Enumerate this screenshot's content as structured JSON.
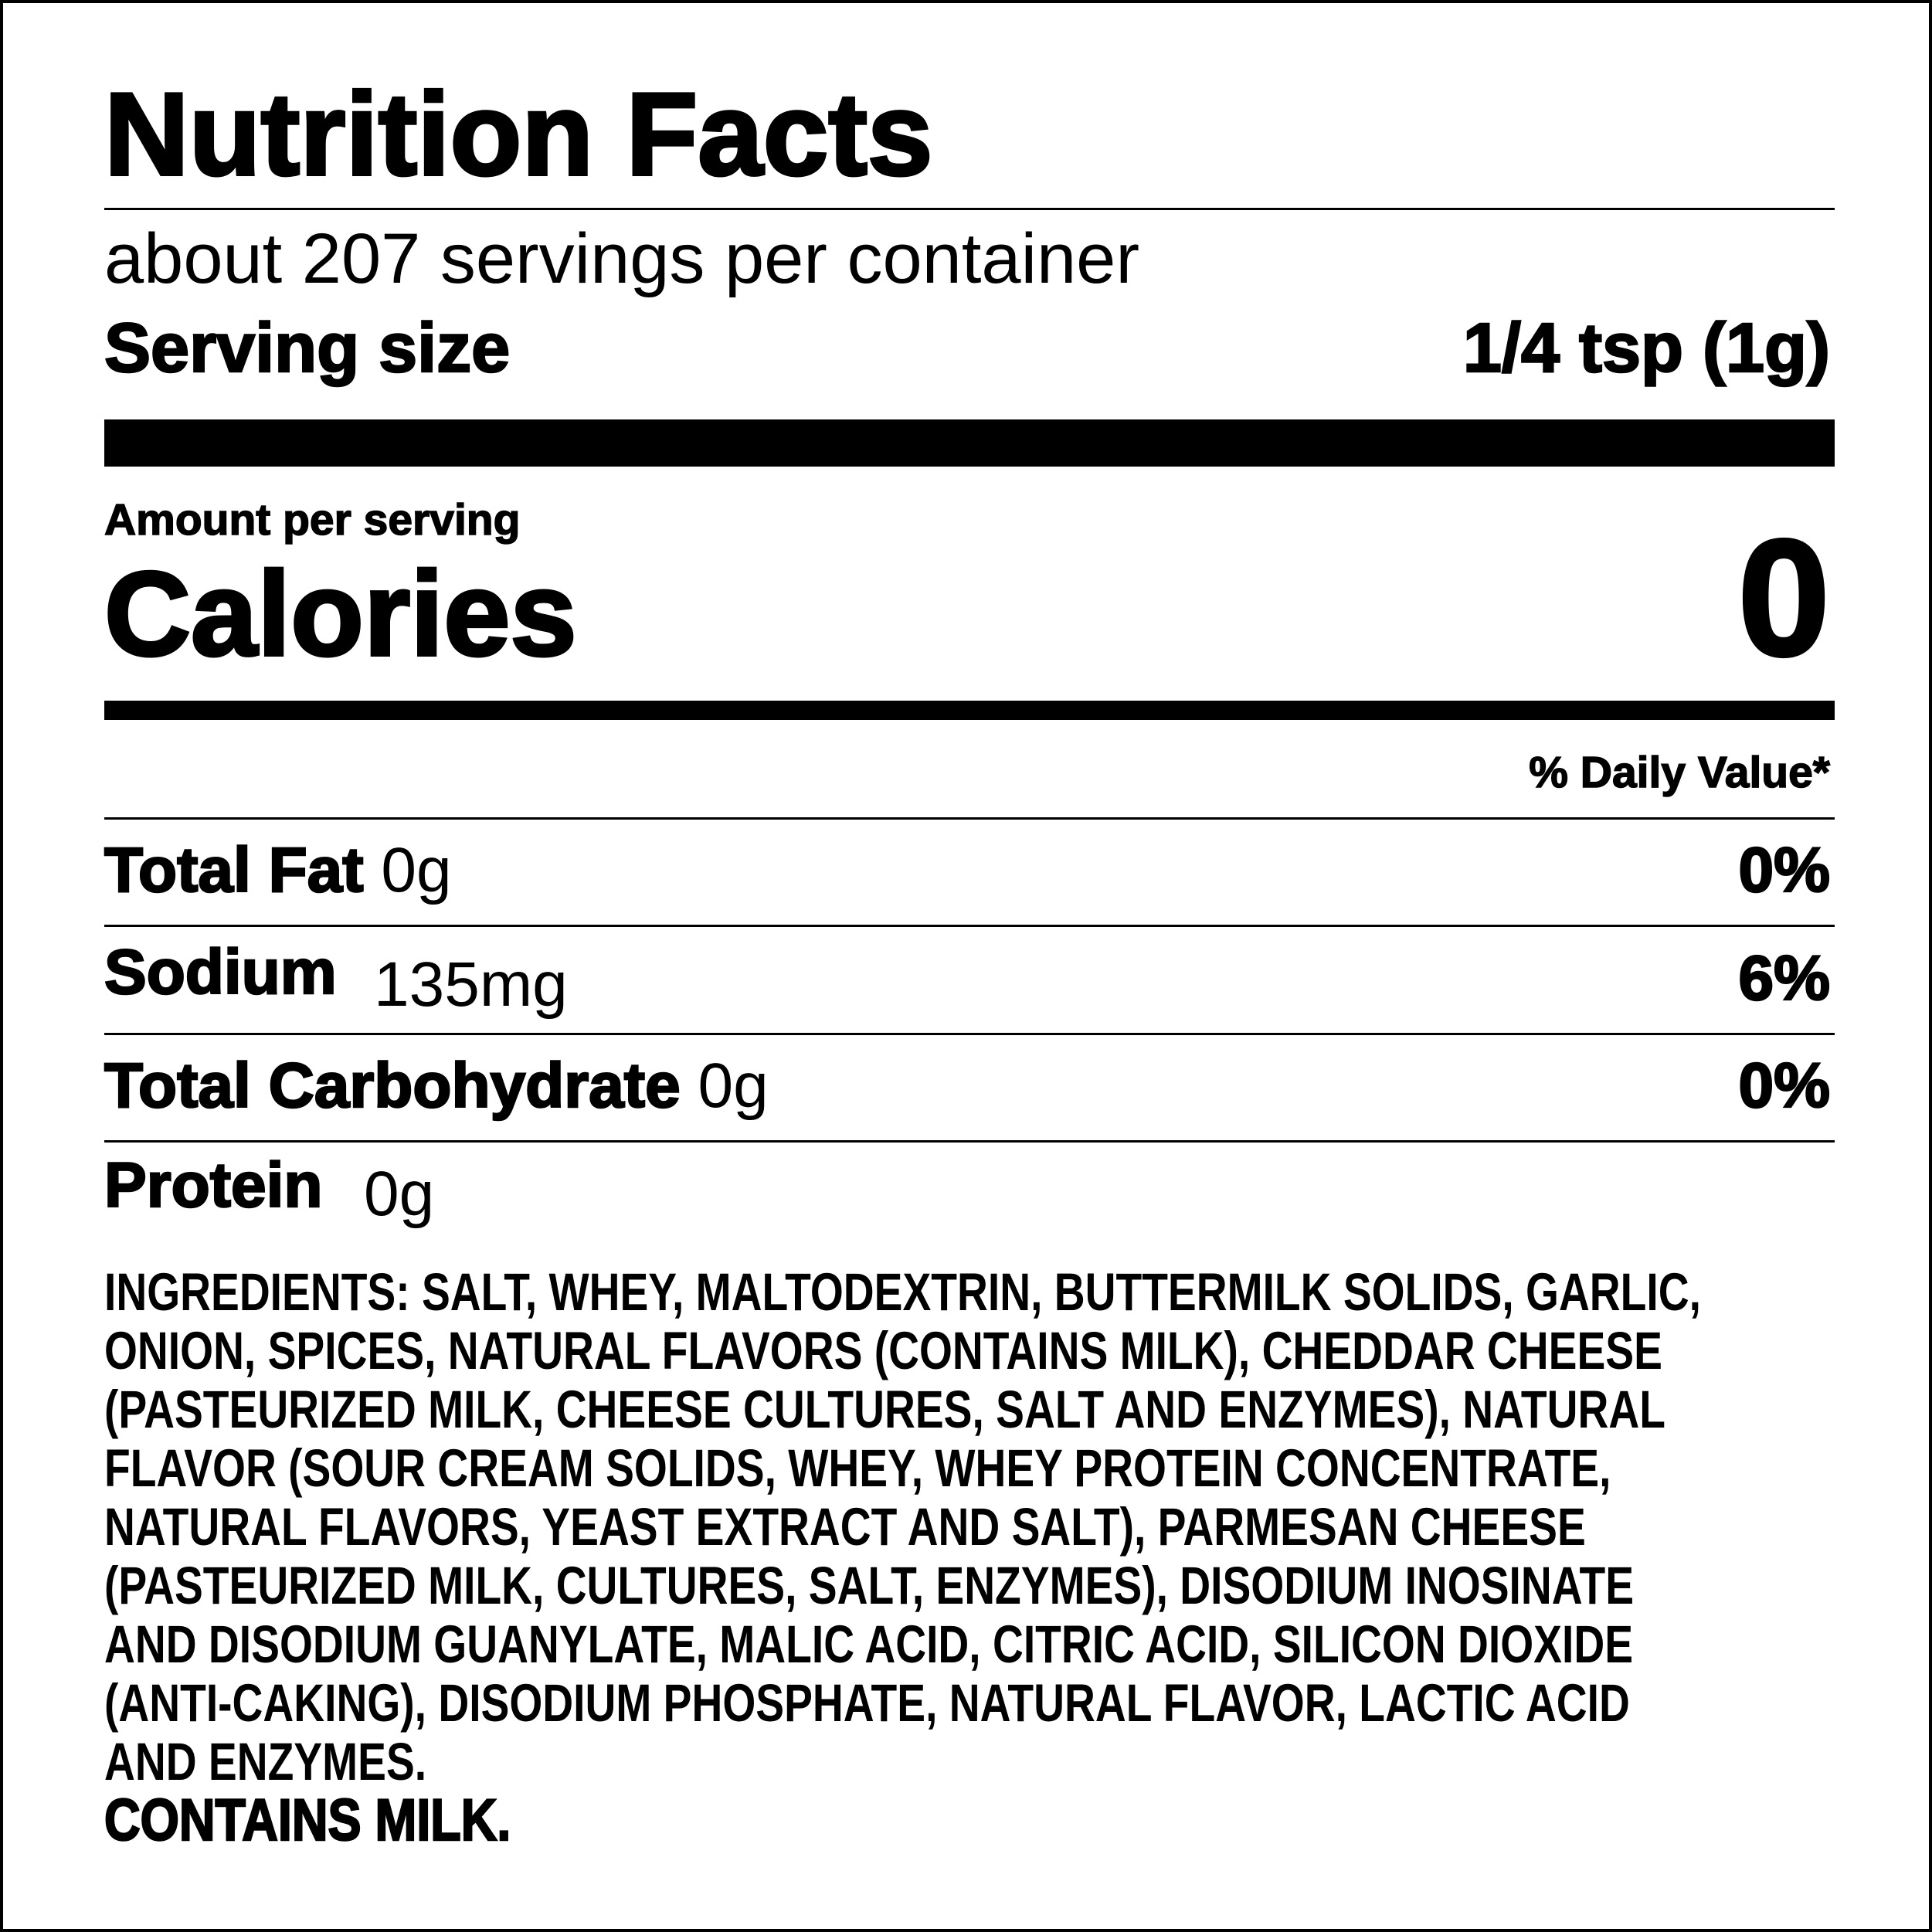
{
  "title": "Nutrition Facts",
  "servings_per_container": "about 207 servings per container",
  "serving_size": {
    "label": "Serving size",
    "value": "1/4 tsp (1g)"
  },
  "amount_per_serving": "Amount per serving",
  "calories": {
    "label": "Calories",
    "value": "0"
  },
  "daily_value_header": "% Daily Value*",
  "nutrients": [
    {
      "name": "Total Fat",
      "amount": "0g",
      "dv": "0%"
    },
    {
      "name": "Sodium",
      "amount": "135mg",
      "dv": "6%"
    },
    {
      "name": "Total Carbohydrate",
      "amount": "0g",
      "dv": "0%"
    },
    {
      "name": "Protein",
      "amount": "0g"
    }
  ],
  "ingredients_lines": [
    "INGREDIENTS: SALT, WHEY, MALTODEXTRIN, BUTTERMILK SOLIDS, GARLIC,",
    "ONION, SPICES, NATURAL FLAVORS (CONTAINS MILK), CHEDDAR CHEESE",
    "(PASTEURIZED MILK, CHEESE CULTURES, SALT AND ENZYMES), NATURAL",
    "FLAVOR (SOUR CREAM SOLIDS, WHEY, WHEY PROTEIN CONCENTRATE,",
    "NATURAL FLAVORS, YEAST EXTRACT AND SALT), PARMESAN CHEESE",
    "(PASTEURIZED MILK, CULTURES, SALT, ENZYMES), DISODIUM INOSINATE",
    "AND DISODIUM GUANYLATE, MALIC ACID, CITRIC ACID, SILICON DIOXIDE",
    "(ANTI-CAKING), DISODIUM PHOSPHATE, NATURAL FLAVOR, LACTIC ACID",
    "AND ENZYMES."
  ],
  "allergen_statement": "CONTAINS MILK."
}
